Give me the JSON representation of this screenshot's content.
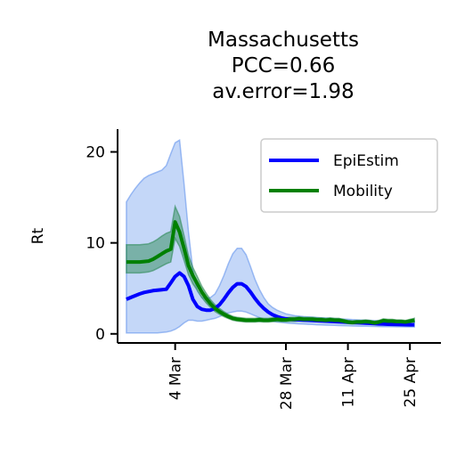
{
  "chart_data": {
    "type": "line",
    "title": [
      "Massachusetts",
      "PCC=0.66",
      "av.error=1.98"
    ],
    "xlabel": "",
    "ylabel": "Rt",
    "ylim": [
      -1,
      22.5
    ],
    "yticks": [
      0,
      10,
      20
    ],
    "xlim": [
      -2,
      71
    ],
    "xticks": [
      {
        "x": 11,
        "label": "4 Mar"
      },
      {
        "x": 36,
        "label": "28 Mar"
      },
      {
        "x": 50,
        "label": "11 Apr"
      },
      {
        "x": 64,
        "label": "25 Apr"
      }
    ],
    "legend_position": "top-right",
    "grid": false,
    "series": [
      {
        "name": "EpiEstim",
        "color": "#0000ff",
        "band_color": "#6495ed",
        "x": [
          0,
          1,
          2,
          3,
          4,
          5,
          6,
          7,
          8,
          9,
          10,
          11,
          12,
          13,
          14,
          15,
          16,
          17,
          18,
          19,
          20,
          21,
          22,
          23,
          24,
          25,
          26,
          27,
          28,
          29,
          30,
          31,
          32,
          33,
          34,
          35,
          36,
          37,
          38,
          39,
          40,
          41,
          42,
          43,
          44,
          45,
          46,
          47,
          48,
          49,
          50,
          51,
          52,
          53,
          54,
          55,
          56,
          57,
          58,
          59,
          60,
          61,
          62,
          63,
          64,
          65
        ],
        "y": [
          3.8,
          4.0,
          4.2,
          4.4,
          4.55,
          4.65,
          4.75,
          4.8,
          4.85,
          4.9,
          5.6,
          6.3,
          6.7,
          6.3,
          5.3,
          3.8,
          3.0,
          2.7,
          2.6,
          2.6,
          2.8,
          3.2,
          3.8,
          4.5,
          5.1,
          5.5,
          5.5,
          5.2,
          4.6,
          3.9,
          3.3,
          2.8,
          2.4,
          2.1,
          1.9,
          1.75,
          1.65,
          1.6,
          1.58,
          1.55,
          1.53,
          1.5,
          1.48,
          1.45,
          1.42,
          1.4,
          1.38,
          1.35,
          1.33,
          1.3,
          1.28,
          1.25,
          1.22,
          1.2,
          1.18,
          1.15,
          1.13,
          1.1,
          1.08,
          1.06,
          1.05,
          1.03,
          1.02,
          1.01,
          1.0,
          1.0
        ],
        "lower": [
          0.1,
          0.1,
          0.1,
          0.1,
          0.1,
          0.1,
          0.1,
          0.1,
          0.15,
          0.2,
          0.3,
          0.5,
          0.8,
          1.2,
          1.5,
          1.5,
          1.4,
          1.4,
          1.5,
          1.6,
          1.7,
          1.9,
          2.1,
          2.3,
          2.4,
          2.5,
          2.5,
          2.4,
          2.2,
          2.0,
          1.8,
          1.6,
          1.5,
          1.4,
          1.3,
          1.25,
          1.2,
          1.15,
          1.12,
          1.1,
          1.08,
          1.05,
          1.03,
          1.0,
          0.98,
          0.96,
          0.95,
          0.93,
          0.91,
          0.9,
          0.88,
          0.86,
          0.85,
          0.84,
          0.83,
          0.82,
          0.81,
          0.8,
          0.79,
          0.78,
          0.78,
          0.77,
          0.77,
          0.76,
          0.76,
          0.76
        ],
        "upper": [
          14.5,
          15.3,
          16.0,
          16.6,
          17.1,
          17.4,
          17.6,
          17.8,
          18.0,
          18.5,
          19.8,
          21.0,
          21.3,
          16.5,
          11.2,
          7.0,
          4.7,
          4.0,
          3.9,
          4.0,
          4.4,
          5.3,
          6.4,
          7.7,
          8.8,
          9.4,
          9.4,
          8.7,
          7.4,
          6.0,
          4.9,
          4.0,
          3.3,
          2.9,
          2.6,
          2.4,
          2.2,
          2.1,
          2.0,
          1.95,
          1.9,
          1.87,
          1.84,
          1.8,
          1.77,
          1.74,
          1.71,
          1.68,
          1.65,
          1.62,
          1.6,
          1.57,
          1.55,
          1.53,
          1.51,
          1.49,
          1.47,
          1.45,
          1.43,
          1.41,
          1.4,
          1.38,
          1.37,
          1.36,
          1.35,
          1.34
        ]
      },
      {
        "name": "Mobility",
        "color": "#008000",
        "band_color": "#2e8b57",
        "x": [
          0,
          1,
          2,
          3,
          4,
          5,
          6,
          7,
          8,
          9,
          10,
          11,
          12,
          13,
          14,
          15,
          16,
          17,
          18,
          19,
          20,
          21,
          22,
          23,
          24,
          25,
          26,
          27,
          28,
          29,
          30,
          31,
          32,
          33,
          34,
          35,
          36,
          37,
          38,
          39,
          40,
          41,
          42,
          43,
          44,
          45,
          46,
          47,
          48,
          49,
          50,
          51,
          52,
          53,
          54,
          55,
          56,
          57,
          58,
          59,
          60,
          61,
          62,
          63,
          64,
          65
        ],
        "y": [
          7.9,
          7.9,
          7.9,
          7.9,
          7.95,
          8.0,
          8.2,
          8.5,
          8.8,
          9.1,
          9.3,
          12.3,
          11.2,
          9.4,
          7.5,
          6.4,
          5.5,
          4.6,
          3.9,
          3.3,
          2.8,
          2.45,
          2.15,
          1.9,
          1.7,
          1.6,
          1.55,
          1.5,
          1.5,
          1.5,
          1.55,
          1.5,
          1.5,
          1.55,
          1.6,
          1.55,
          1.55,
          1.6,
          1.6,
          1.65,
          1.6,
          1.6,
          1.6,
          1.55,
          1.55,
          1.5,
          1.55,
          1.5,
          1.5,
          1.4,
          1.3,
          1.25,
          1.3,
          1.3,
          1.35,
          1.3,
          1.2,
          1.3,
          1.45,
          1.4,
          1.4,
          1.35,
          1.35,
          1.3,
          1.4,
          1.5
        ],
        "lower": [
          6.7,
          6.7,
          6.7,
          6.7,
          6.75,
          6.8,
          6.95,
          7.2,
          7.45,
          7.7,
          7.9,
          10.5,
          9.6,
          8.1,
          6.5,
          5.5,
          4.8,
          4.0,
          3.4,
          2.9,
          2.45,
          2.15,
          1.9,
          1.68,
          1.5,
          1.4,
          1.35,
          1.3,
          1.3,
          1.3,
          1.34,
          1.3,
          1.3,
          1.34,
          1.38,
          1.34,
          1.34,
          1.38,
          1.38,
          1.42,
          1.38,
          1.38,
          1.38,
          1.34,
          1.34,
          1.3,
          1.34,
          1.3,
          1.3,
          1.21,
          1.12,
          1.08,
          1.12,
          1.12,
          1.16,
          1.12,
          1.04,
          1.12,
          1.25,
          1.21,
          1.21,
          1.16,
          1.16,
          1.12,
          1.21,
          1.29
        ],
        "upper": [
          9.8,
          9.8,
          9.8,
          9.8,
          9.85,
          9.9,
          10.1,
          10.4,
          10.75,
          11.05,
          11.25,
          14.0,
          12.9,
          10.8,
          8.6,
          7.3,
          6.3,
          5.25,
          4.45,
          3.75,
          3.2,
          2.8,
          2.45,
          2.15,
          1.93,
          1.82,
          1.76,
          1.7,
          1.7,
          1.7,
          1.76,
          1.7,
          1.7,
          1.76,
          1.82,
          1.76,
          1.76,
          1.82,
          1.82,
          1.88,
          1.82,
          1.82,
          1.82,
          1.76,
          1.76,
          1.7,
          1.76,
          1.7,
          1.7,
          1.59,
          1.48,
          1.42,
          1.48,
          1.48,
          1.54,
          1.48,
          1.37,
          1.48,
          1.65,
          1.59,
          1.59,
          1.54,
          1.54,
          1.48,
          1.59,
          1.71
        ]
      }
    ]
  }
}
